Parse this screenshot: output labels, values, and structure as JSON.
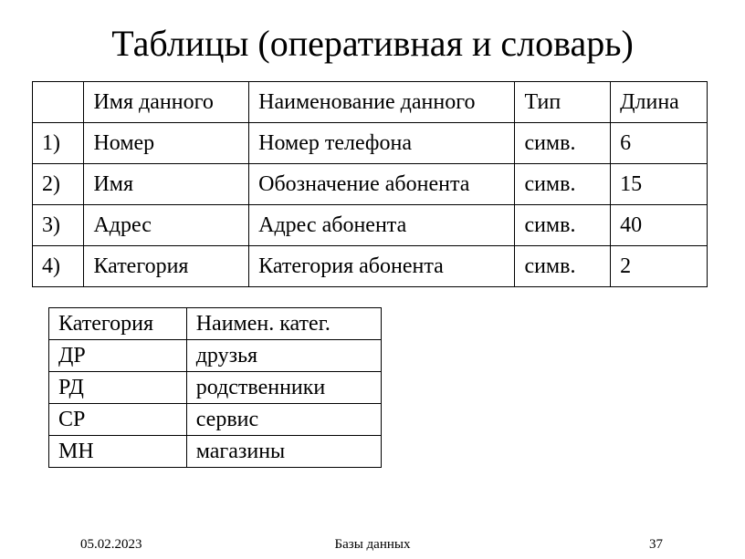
{
  "title": "Таблицы (оперативная и словарь)",
  "table1": {
    "header": {
      "num": "",
      "name": "Имя данного",
      "description": "Наименование данного",
      "type": "Тип",
      "length": "Длина"
    },
    "rows": [
      {
        "num": "1)",
        "name": "Номер",
        "description": "Номер телефона",
        "type": "симв.",
        "length": "6"
      },
      {
        "num": "2)",
        "name": "Имя",
        "description": "Обозначение абонента",
        "type": "симв.",
        "length": "15"
      },
      {
        "num": "3)",
        "name": "Адрес",
        "description": "Адрес абонента",
        "type": "симв.",
        "length": "40"
      },
      {
        "num": "4)",
        "name": "Категория",
        "description": "Категория абонента",
        "type": "симв.",
        "length": "2"
      }
    ]
  },
  "table2": {
    "header": {
      "category": "Категория",
      "catname": "Наимен. катег."
    },
    "rows": [
      {
        "category": "ДР",
        "catname": "друзья"
      },
      {
        "category": "РД",
        "catname": "родственники"
      },
      {
        "category": "СР",
        "catname": "сервис"
      },
      {
        "category": "МН",
        "catname": "магазины"
      }
    ]
  },
  "footer": {
    "date": "05.02.2023",
    "center": "Базы данных",
    "page": "37"
  }
}
